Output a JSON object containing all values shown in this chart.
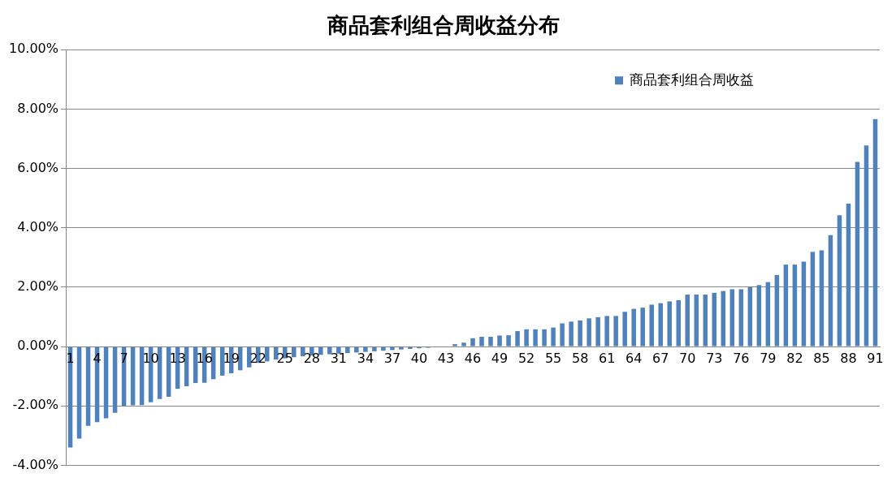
{
  "chart_data": {
    "type": "bar",
    "title": "商品套利组合周收益分布",
    "categories": [
      "1",
      null,
      null,
      "4",
      null,
      null,
      "7",
      null,
      null,
      "10",
      null,
      null,
      "13",
      null,
      null,
      "16",
      null,
      null,
      "19",
      null,
      null,
      "22",
      null,
      null,
      "25",
      null,
      null,
      "28",
      null,
      null,
      "31",
      null,
      null,
      "34",
      null,
      null,
      "37",
      null,
      null,
      "40",
      null,
      null,
      "43",
      null,
      null,
      "46",
      null,
      null,
      "49",
      null,
      null,
      "52",
      null,
      null,
      "55",
      null,
      null,
      "58",
      null,
      null,
      "61",
      null,
      null,
      "64",
      null,
      null,
      "67",
      null,
      null,
      "70",
      null,
      null,
      "73",
      null,
      null,
      "76",
      null,
      null,
      "79",
      null,
      null,
      "82",
      null,
      null,
      "85",
      null,
      null,
      "88",
      null,
      null,
      "91"
    ],
    "series": [
      {
        "name": "商品套利组合周收益",
        "color": "#4f81bd",
        "values": [
          -3.4,
          -3.1,
          -2.67,
          -2.55,
          -2.42,
          -2.23,
          -2.0,
          -1.98,
          -1.97,
          -1.88,
          -1.77,
          -1.69,
          -1.42,
          -1.34,
          -1.23,
          -1.22,
          -1.1,
          -0.98,
          -0.9,
          -0.8,
          -0.7,
          -0.55,
          -0.5,
          -0.44,
          -0.4,
          -0.36,
          -0.33,
          -0.3,
          -0.28,
          -0.26,
          -0.24,
          -0.22,
          -0.2,
          -0.18,
          -0.16,
          -0.14,
          -0.12,
          -0.1,
          -0.08,
          -0.06,
          -0.04,
          null,
          null,
          0.08,
          0.13,
          0.28,
          0.33,
          0.33,
          0.37,
          0.38,
          0.52,
          0.58,
          0.58,
          0.58,
          0.64,
          0.78,
          0.84,
          0.88,
          0.95,
          0.99,
          1.03,
          1.03,
          1.17,
          1.27,
          1.31,
          1.41,
          1.46,
          1.52,
          1.56,
          1.75,
          1.75,
          1.75,
          1.81,
          1.87,
          1.93,
          1.93,
          2.0,
          2.07,
          2.17,
          2.41,
          2.76,
          2.76,
          2.86,
          3.19,
          3.24,
          3.75,
          4.42,
          4.81,
          6.22,
          6.77,
          7.66
        ]
      }
    ],
    "ylim": [
      -4,
      10
    ],
    "yticks": [
      {
        "value": -4,
        "label": "-4.00%"
      },
      {
        "value": -2,
        "label": "-2.00%"
      },
      {
        "value": 0,
        "label": "0.00%"
      },
      {
        "value": 2,
        "label": "2.00%"
      },
      {
        "value": 4,
        "label": "4.00%"
      },
      {
        "value": 6,
        "label": "6.00%"
      },
      {
        "value": 8,
        "label": "8.00%"
      },
      {
        "value": 10,
        "label": "10.00%"
      }
    ],
    "grid": "y",
    "legend": "top right"
  }
}
